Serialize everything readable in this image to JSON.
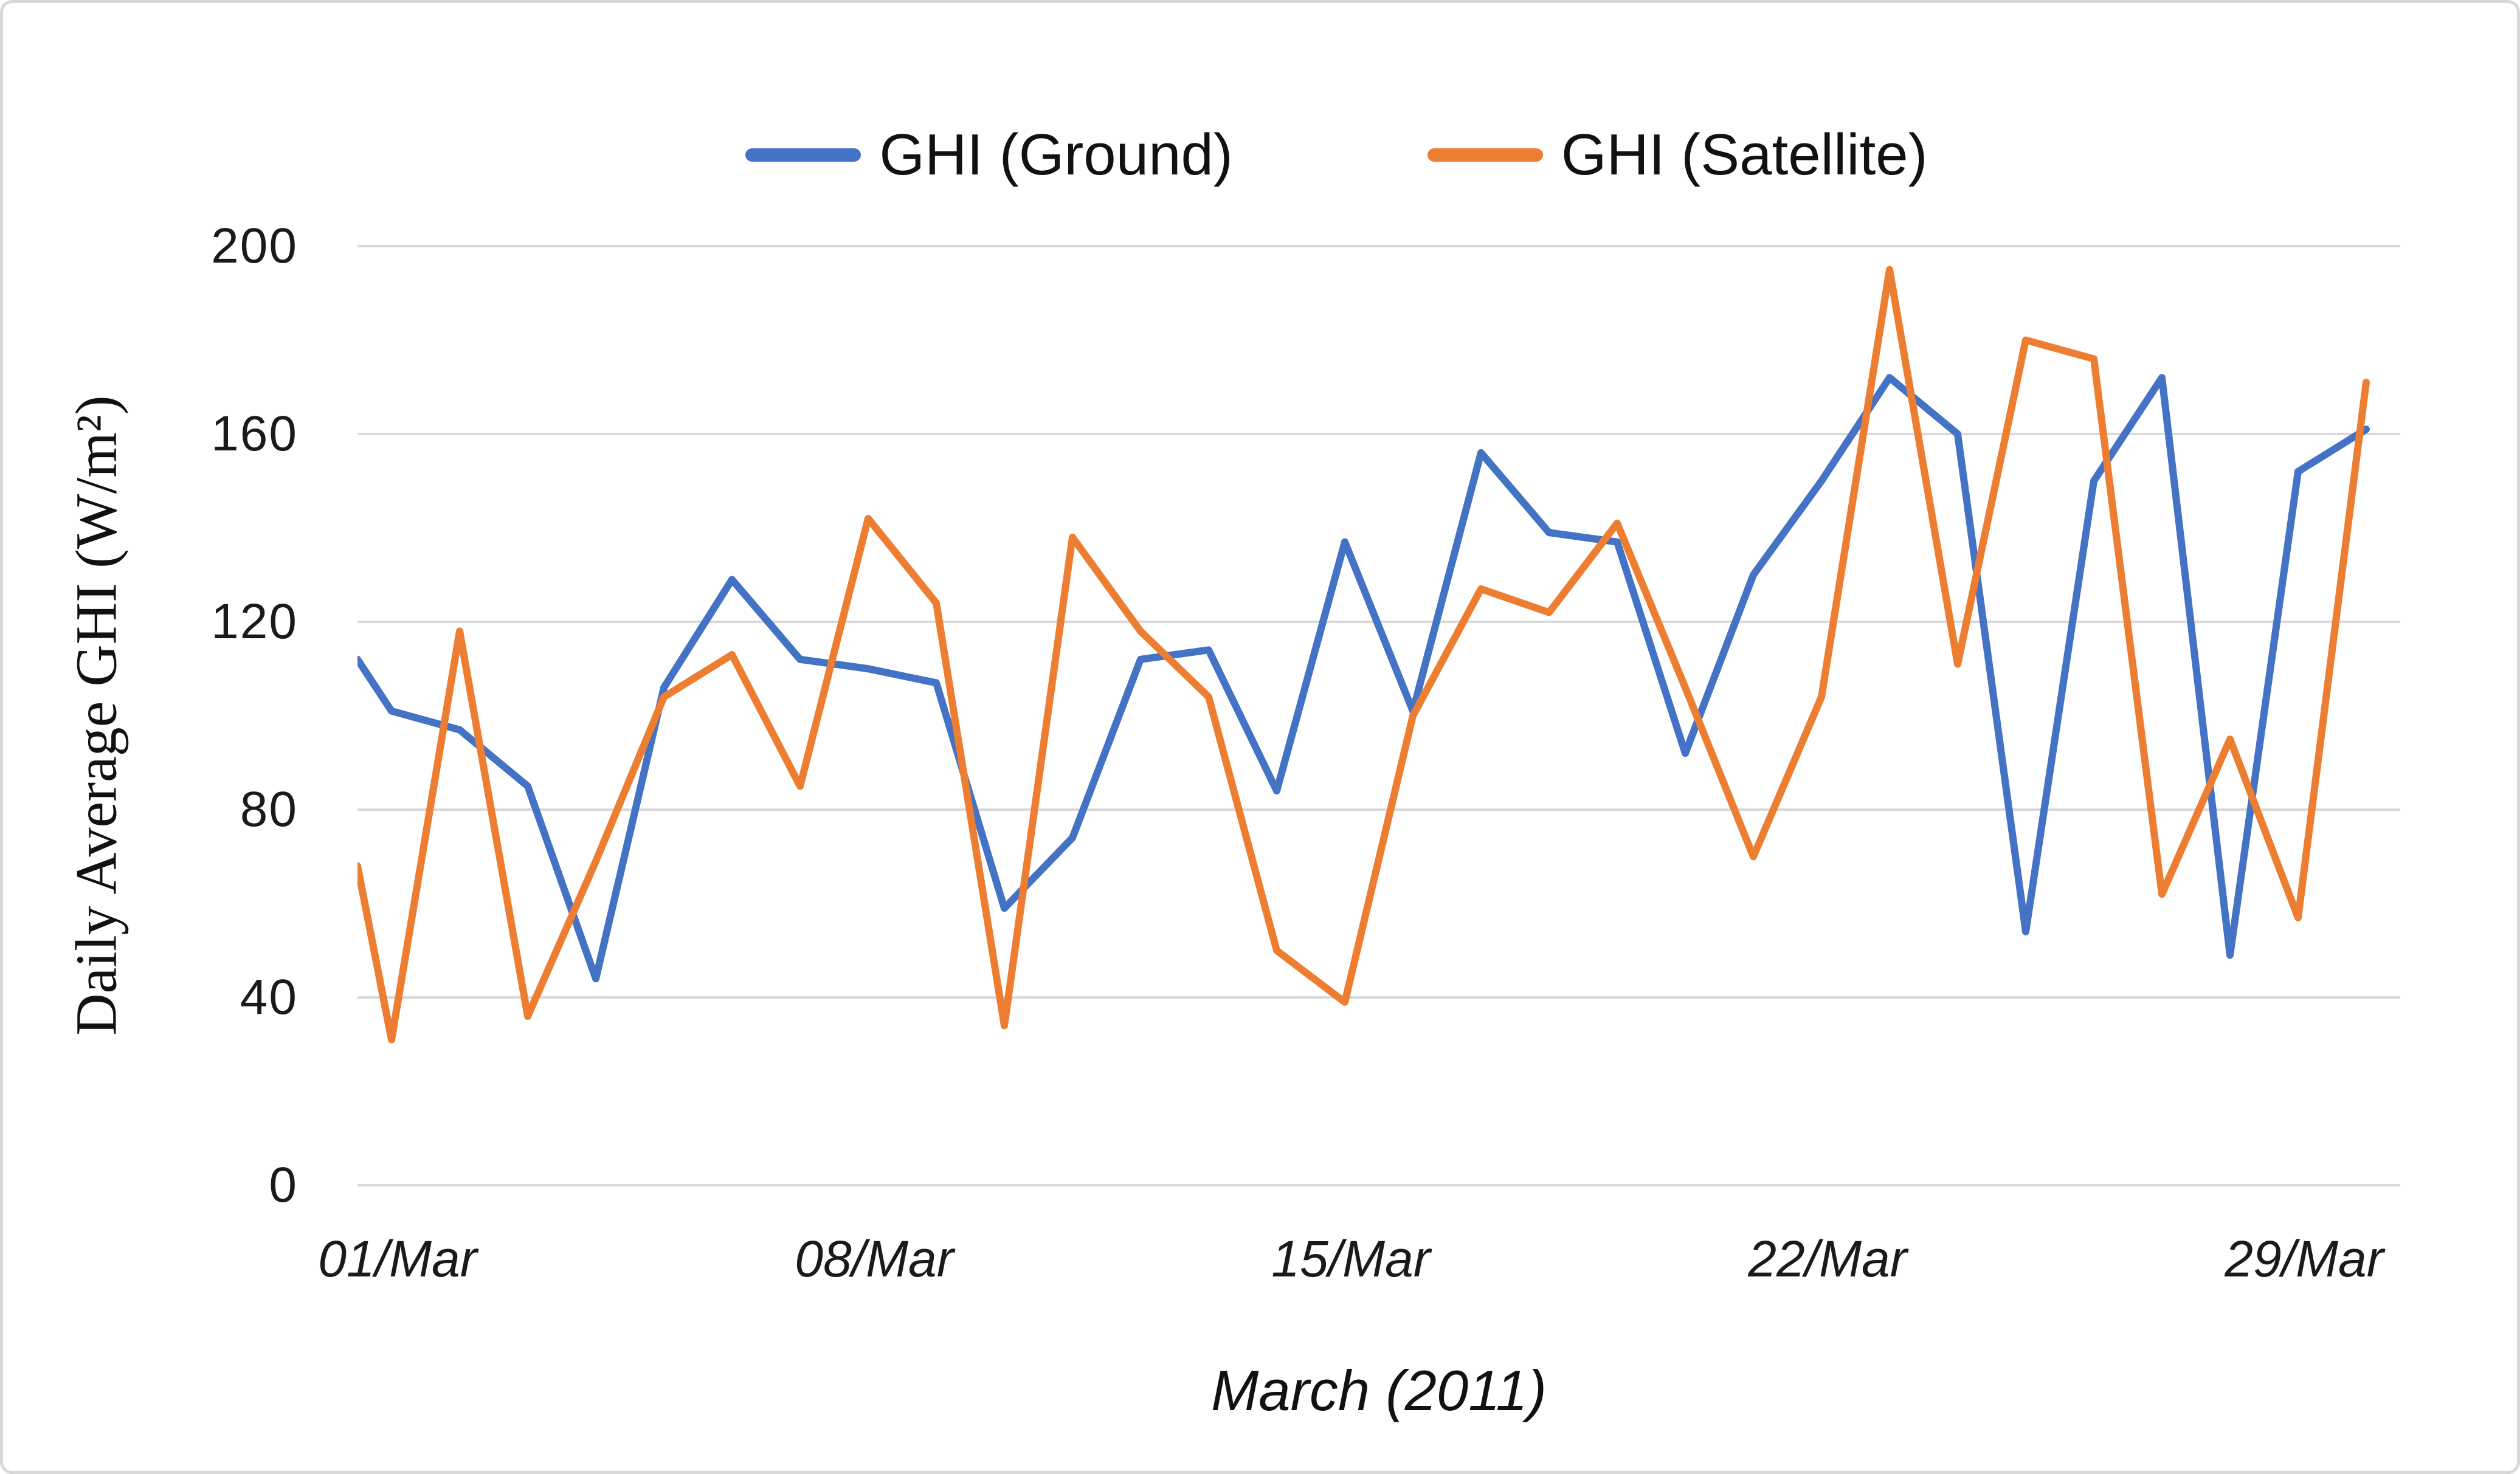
{
  "legend": {
    "items": [
      {
        "label": "GHI (Ground)",
        "color": "#4472C4"
      },
      {
        "label": "GHI (Satellite)",
        "color": "#ED7D31"
      }
    ]
  },
  "y_axis": {
    "title": "Daily Average GHI (W/m²)",
    "ticks": [
      "200",
      "160",
      "120",
      "80",
      "40",
      "0"
    ]
  },
  "x_axis": {
    "title": "March (2011)",
    "tick_labels": [
      "01/Mar",
      "08/Mar",
      "15/Mar",
      "22/Mar",
      "29/Mar"
    ],
    "tick_days": [
      1,
      8,
      15,
      22,
      29
    ]
  },
  "chart_data": {
    "type": "line",
    "title": "",
    "xlabel": "March (2011)",
    "ylabel": "Daily Average GHI (W/m²)",
    "ylim": [
      0,
      200
    ],
    "yticks": [
      0,
      40,
      80,
      120,
      160,
      200
    ],
    "grid": "horizontal",
    "legend_position": "top-center",
    "x": [
      1,
      2,
      3,
      4,
      5,
      6,
      7,
      8,
      9,
      10,
      11,
      12,
      13,
      14,
      15,
      16,
      17,
      18,
      19,
      20,
      21,
      22,
      23,
      24,
      25,
      26,
      27,
      28,
      29,
      30
    ],
    "x_unit": "day of March 2011",
    "series": [
      {
        "name": "GHI (Ground)",
        "color": "#4472C4",
        "left_edge_entry": 112,
        "values": [
          101,
          97,
          85,
          44,
          106,
          129,
          112,
          110,
          107,
          59,
          74,
          112,
          114,
          84,
          137,
          101,
          156,
          139,
          137,
          92,
          130,
          150,
          172,
          160,
          54,
          150,
          172,
          49,
          152,
          161
        ]
      },
      {
        "name": "GHI (Satellite)",
        "color": "#ED7D31",
        "left_edge_entry": 68,
        "values": [
          31,
          118,
          36,
          69,
          104,
          113,
          85,
          142,
          124,
          34,
          138,
          118,
          104,
          50,
          39,
          100,
          127,
          122,
          141,
          106,
          70,
          104,
          195,
          111,
          180,
          176,
          62,
          95,
          57,
          171
        ]
      }
    ],
    "gridline_color": "#D9D9D9"
  }
}
